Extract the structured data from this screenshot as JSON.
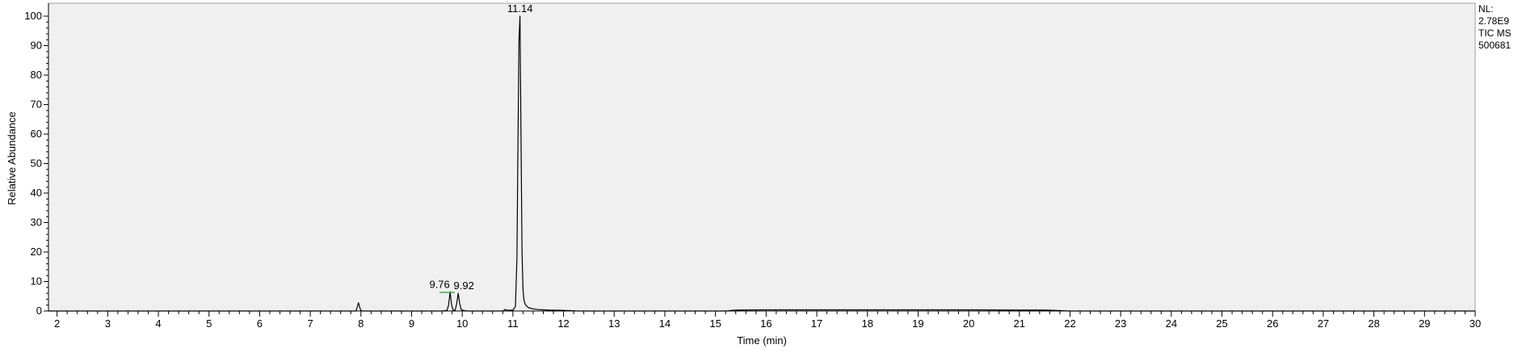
{
  "chart_data": {
    "type": "line",
    "xlabel": "Time (min)",
    "ylabel": "Relative Abundance",
    "xlim": [
      1.83,
      30
    ],
    "ylim": [
      0,
      100
    ],
    "x_ticks": [
      2,
      3,
      4,
      5,
      6,
      7,
      8,
      9,
      10,
      11,
      12,
      13,
      14,
      15,
      16,
      17,
      18,
      19,
      20,
      21,
      22,
      23,
      24,
      25,
      26,
      27,
      28,
      29,
      30
    ],
    "y_ticks": [
      0,
      10,
      20,
      30,
      40,
      50,
      60,
      70,
      80,
      90,
      100
    ],
    "grid": false,
    "colors": {
      "plot_background": "#f0f0f0",
      "trace": "#000000",
      "baseline_marker": "#2e9c2e"
    },
    "series": [
      {
        "x": [
          1.83,
          7.9,
          7.93,
          7.95,
          7.98,
          8.0,
          8.05,
          9.6,
          9.7,
          9.73,
          9.76,
          9.79,
          9.82,
          9.86,
          9.89,
          9.92,
          9.95,
          9.98,
          10.02,
          10.1,
          10.8,
          10.85,
          10.9,
          11.0,
          11.05,
          11.08,
          11.1,
          11.12,
          11.14,
          11.16,
          11.18,
          11.2,
          11.22,
          11.25,
          11.3,
          11.4,
          11.5,
          11.7,
          12.0,
          12.3,
          15.2,
          15.4,
          16.0,
          17.0,
          18.0,
          19.0,
          20.0,
          21.0,
          21.5,
          21.7,
          22.0,
          30.0
        ],
        "y": [
          0,
          0,
          1.5,
          2.8,
          1.0,
          0.1,
          0,
          0,
          0.2,
          2.0,
          6.5,
          2.0,
          0.3,
          0.2,
          2.5,
          6.0,
          2.5,
          0.5,
          0.2,
          0,
          0,
          0.5,
          0.2,
          0.3,
          1.5,
          18,
          57,
          92,
          100,
          60,
          20,
          7,
          3.5,
          2.0,
          1.2,
          0.7,
          0.5,
          0.3,
          0.2,
          0,
          0,
          0.3,
          0.4,
          0.4,
          0.4,
          0.4,
          0.4,
          0.3,
          0.3,
          0.2,
          0,
          0
        ]
      }
    ],
    "peak_labels": [
      {
        "x": 9.76,
        "y": 6.5,
        "label": "9.76"
      },
      {
        "x": 9.92,
        "y": 6.0,
        "label": "9.92"
      },
      {
        "x": 11.14,
        "y": 100,
        "label": "11.14"
      }
    ],
    "baseline_segment": {
      "x": [
        9.55,
        9.85
      ],
      "y": 6.3
    }
  },
  "instrument": {
    "nl_label": "NL:",
    "nl_value": "2.78E9",
    "scan_filter": "TIC  MS",
    "file_name": "500681"
  }
}
